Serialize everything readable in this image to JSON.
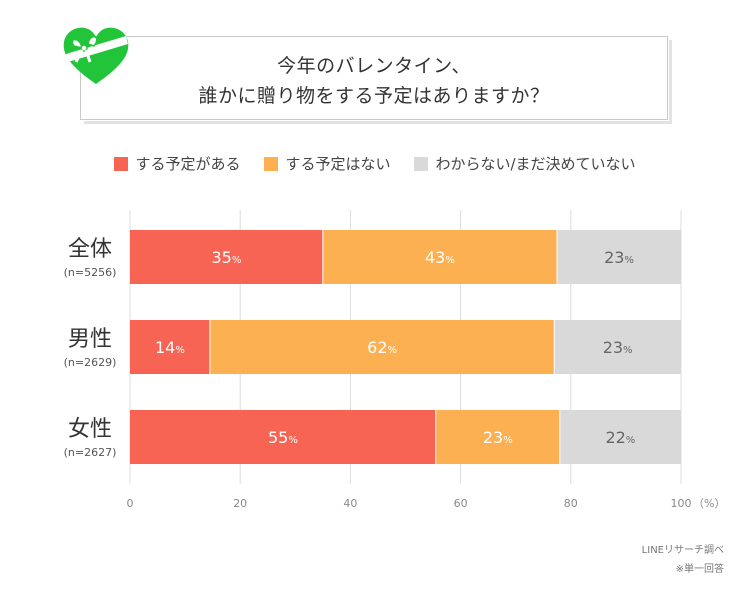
{
  "title": {
    "line1": "今年のバレンタイン、",
    "line2": "誰かに贈り物をする予定はありますか？"
  },
  "colors": {
    "red": "#f86453",
    "orange": "#fcb052",
    "gray": "#d9d9d9",
    "green": "#22c53a"
  },
  "chart_data": {
    "type": "bar",
    "orientation": "horizontal-stacked-100",
    "categories": [
      "全体",
      "男性",
      "女性"
    ],
    "sample_sizes": [
      "(n=5256)",
      "(n=2629)",
      "(n=2627)"
    ],
    "series": [
      {
        "name": "する予定がある",
        "values": [
          35,
          14,
          55
        ],
        "labels": [
          "35",
          "14",
          "55"
        ]
      },
      {
        "name": "する予定はない",
        "values": [
          43,
          62,
          23
        ],
        "labels": [
          "43",
          "62",
          "23"
        ]
      },
      {
        "name": "わからない/まだ決めていない",
        "values": [
          23,
          23,
          22
        ],
        "labels": [
          "23",
          "23",
          "22"
        ]
      }
    ],
    "stack_fractions": [
      [
        0.35,
        0.425,
        0.225
      ],
      [
        0.145,
        0.625,
        0.23
      ],
      [
        0.555,
        0.225,
        0.22
      ]
    ],
    "percent_sign": "%",
    "xlim": [
      0,
      100
    ],
    "xticks": [
      "0",
      "20",
      "40",
      "60",
      "80",
      "100"
    ],
    "xunit": "（%）",
    "grid": true
  },
  "footer": {
    "source": "LINEリサーチ調べ",
    "note": "※単一回答"
  }
}
